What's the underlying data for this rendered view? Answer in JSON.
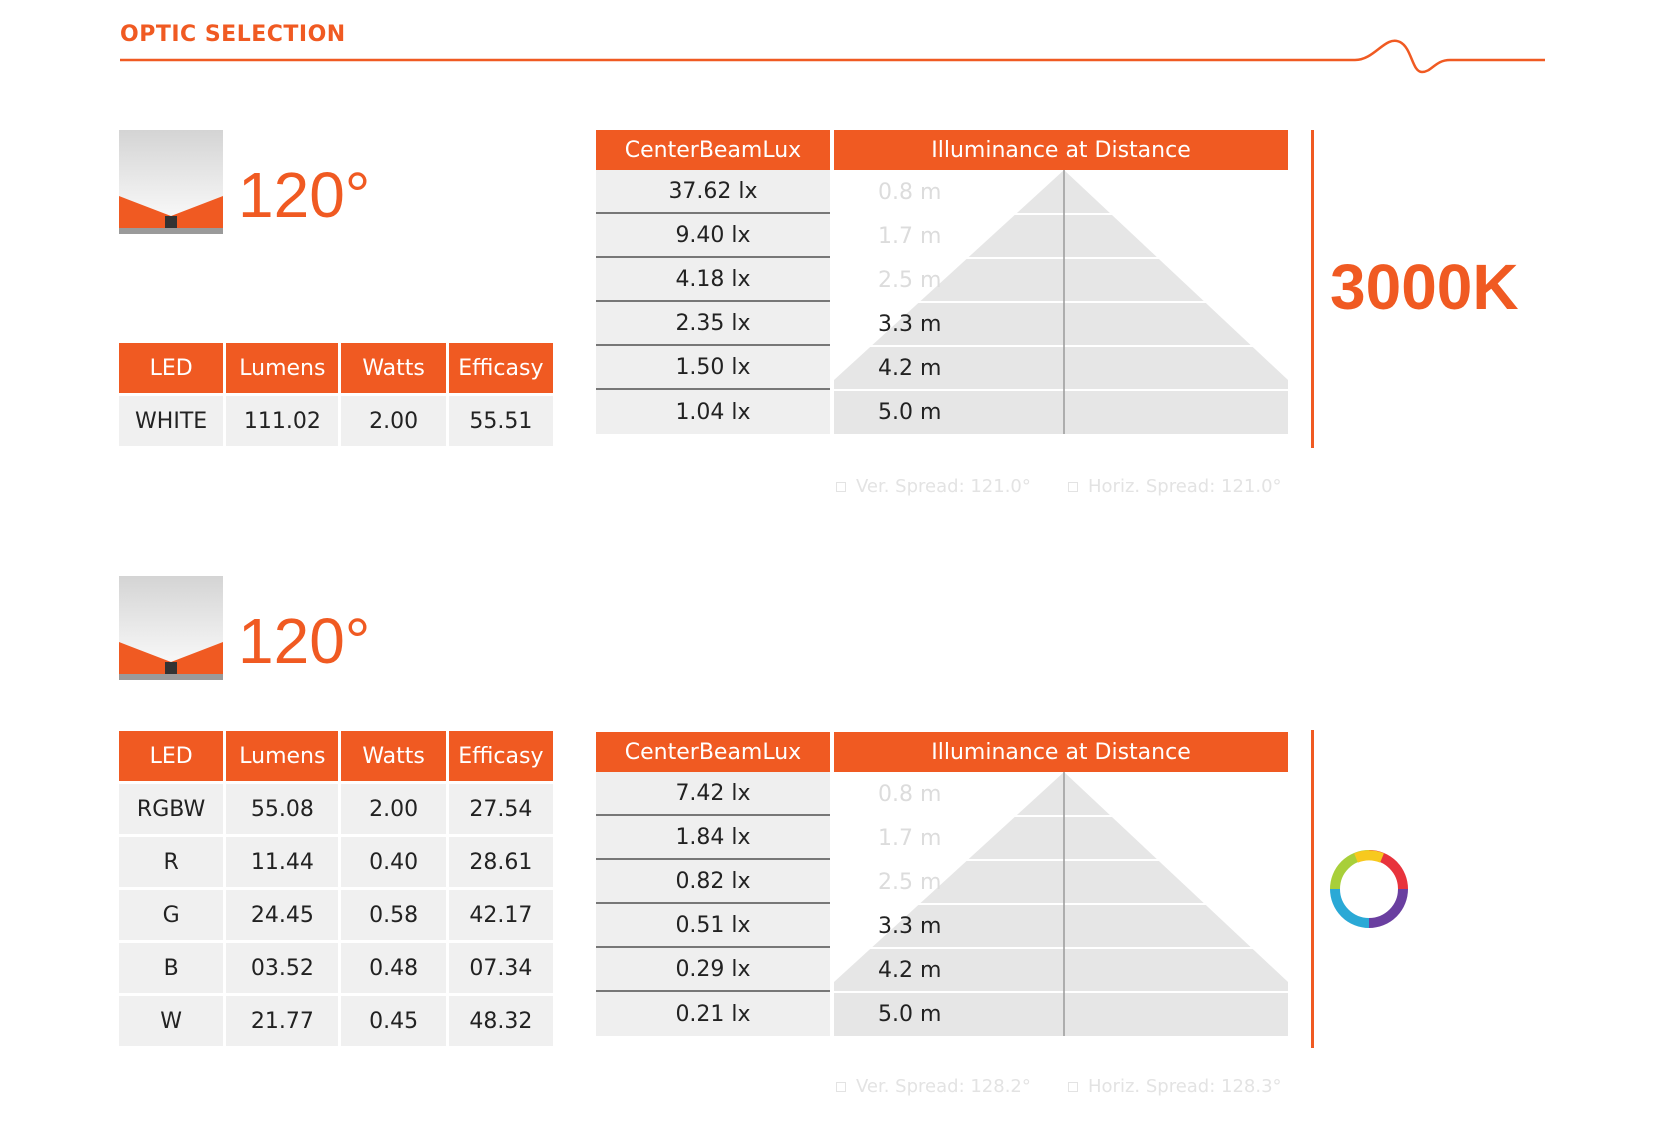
{
  "page": {
    "section_title": "OPTIC SELECTION"
  },
  "colors": {
    "accent": "#f05a22",
    "cell_bg": "#f0f0f0",
    "cone": "#e6e6e6"
  },
  "blocks": [
    {
      "angle_label": "120°",
      "spec_table": {
        "headers": [
          "LED",
          "Lumens",
          "Watts",
          "Efficasy"
        ],
        "rows": [
          [
            "WHITE",
            "111.02",
            "2.00",
            "55.51"
          ]
        ]
      },
      "lux_table": {
        "headers": [
          "CenterBeamLux",
          "Illuminance at Distance"
        ],
        "rows": [
          {
            "lux": "37.62 lx",
            "distance": "0.8 m"
          },
          {
            "lux": "9.40 lx",
            "distance": "1.7 m"
          },
          {
            "lux": "4.18 lx",
            "distance": "2.5 m"
          },
          {
            "lux": "2.35 lx",
            "distance": "3.3 m"
          },
          {
            "lux": "1.50 lx",
            "distance": "4.2 m"
          },
          {
            "lux": "1.04 lx",
            "distance": "5.0 m"
          }
        ]
      },
      "spread": {
        "vertical": "Ver. Spread: 121.0°",
        "horizontal": "Horiz. Spread: 121.0°"
      },
      "color_temp": "3000K"
    },
    {
      "angle_label": "120°",
      "spec_table": {
        "headers": [
          "LED",
          "Lumens",
          "Watts",
          "Efficasy"
        ],
        "rows": [
          [
            "RGBW",
            "55.08",
            "2.00",
            "27.54"
          ],
          [
            "R",
            "11.44",
            "0.40",
            "28.61"
          ],
          [
            "G",
            "24.45",
            "0.58",
            "42.17"
          ],
          [
            "B",
            "03.52",
            "0.48",
            "07.34"
          ],
          [
            "W",
            "21.77",
            "0.45",
            "48.32"
          ]
        ]
      },
      "lux_table": {
        "headers": [
          "CenterBeamLux",
          "Illuminance at Distance"
        ],
        "rows": [
          {
            "lux": "7.42 lx",
            "distance": "0.8 m"
          },
          {
            "lux": "1.84 lx",
            "distance": "1.7 m"
          },
          {
            "lux": "0.82 lx",
            "distance": "2.5 m"
          },
          {
            "lux": "0.51 lx",
            "distance": "3.3 m"
          },
          {
            "lux": "0.29 lx",
            "distance": "4.2 m"
          },
          {
            "lux": "0.21 lx",
            "distance": "5.0 m"
          }
        ]
      },
      "spread": {
        "vertical": "Ver. Spread: 128.2°",
        "horizontal": "Horiz. Spread: 128.3°"
      },
      "color_icon": "rgb-color-wheel-icon"
    }
  ]
}
